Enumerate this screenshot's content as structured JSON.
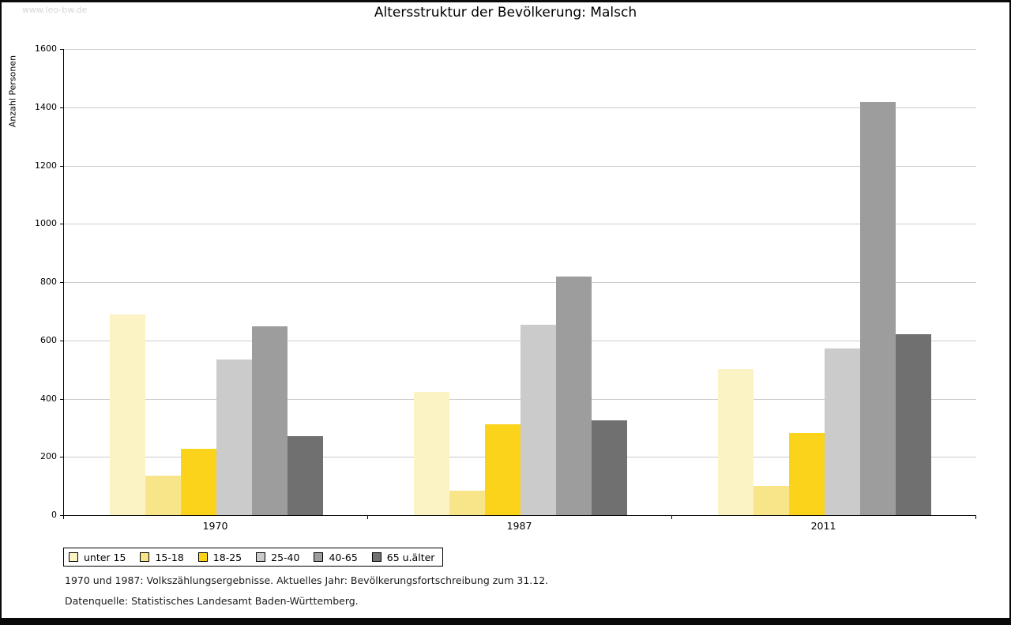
{
  "watermark": "www.leo-bw.de",
  "title": "Altersstruktur der Bevölkerung: Malsch",
  "footnotes": {
    "line1": "1970 und 1987: Volkszählungsergebnisse. Aktuelles Jahr: Bevölkerungsfortschreibung zum 31.12.",
    "line2": "Datenquelle: Statistisches Landesamt Baden-Württemberg."
  },
  "chart_data": {
    "type": "bar",
    "title": "Altersstruktur der Bevölkerung: Malsch",
    "xlabel": "",
    "ylabel": "Anzahl Personen",
    "ylim": [
      0,
      1600
    ],
    "ytick_step": 200,
    "grid": true,
    "legend_position": "bottom",
    "categories": [
      "1970",
      "1987",
      "2011"
    ],
    "series": [
      {
        "name": "unter 15",
        "color": "#FBF3C3",
        "values": [
          690,
          422,
          502
        ]
      },
      {
        "name": "15-18",
        "color": "#F8E58A",
        "values": [
          135,
          85,
          100
        ]
      },
      {
        "name": "18-25",
        "color": "#FBD31B",
        "values": [
          228,
          313,
          283
        ]
      },
      {
        "name": "25-40",
        "color": "#CBCBCB",
        "values": [
          535,
          653,
          573
        ]
      },
      {
        "name": "40-65",
        "color": "#9D9D9D",
        "values": [
          648,
          820,
          1418
        ]
      },
      {
        "name": "65 u.älter",
        "color": "#707070",
        "values": [
          270,
          326,
          622
        ]
      }
    ]
  }
}
